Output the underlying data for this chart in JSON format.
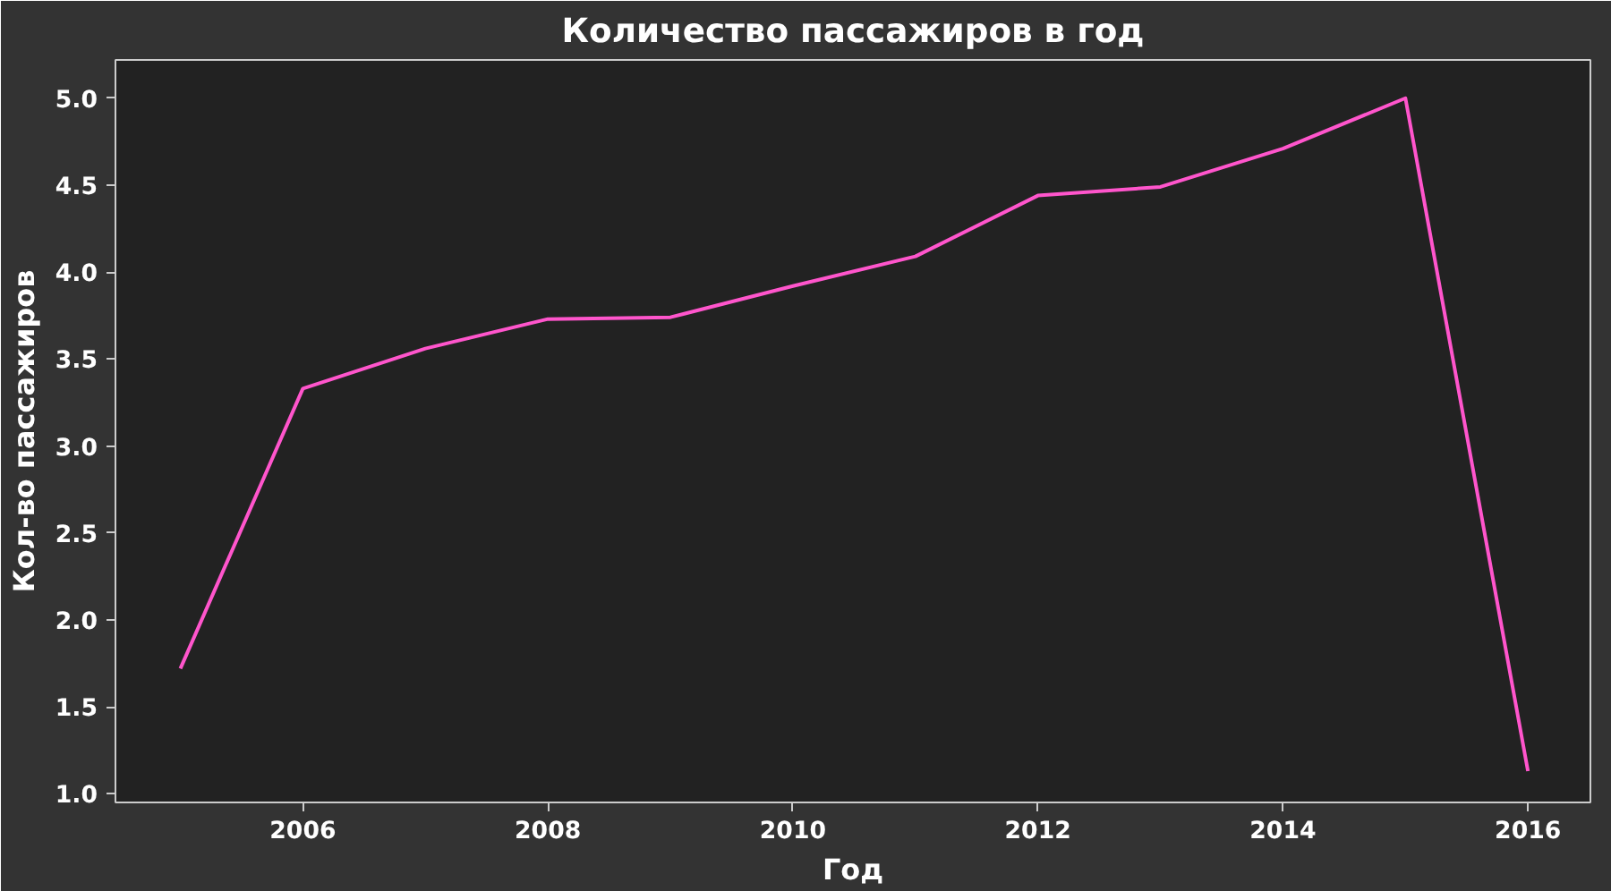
{
  "chart_data": {
    "type": "line",
    "title": "Количество пассажиров в год",
    "xlabel": "Год",
    "ylabel": "Кол-во пассажиров",
    "x": [
      2005,
      2006,
      2007,
      2008,
      2009,
      2010,
      2011,
      2012,
      2013,
      2014,
      2015,
      2016
    ],
    "series": [
      {
        "color": "#ff55cc",
        "values": [
          1.72,
          3.33,
          3.56,
          3.73,
          3.74,
          3.92,
          4.09,
          4.44,
          4.49,
          4.71,
          5.0,
          1.13
        ]
      }
    ],
    "xlim": [
      2004.47,
      2016.51
    ],
    "ylim": [
      0.95,
      5.22
    ],
    "xticks": [
      2006,
      2008,
      2010,
      2012,
      2014,
      2016
    ],
    "yticks": [
      {
        "value": 1,
        "label": "1.0"
      },
      {
        "value": 1.5,
        "label": "1.5"
      },
      {
        "value": 2,
        "label": "2.0"
      },
      {
        "value": 2.5,
        "label": "2.5"
      },
      {
        "value": 3,
        "label": "3.0"
      },
      {
        "value": 3.5,
        "label": "3.5"
      },
      {
        "value": 4,
        "label": "4.0"
      },
      {
        "value": 4.5,
        "label": "4.5"
      },
      {
        "value": 5,
        "label": "5.0"
      }
    ],
    "grid": false,
    "marker": "none",
    "line_style": "solid"
  }
}
